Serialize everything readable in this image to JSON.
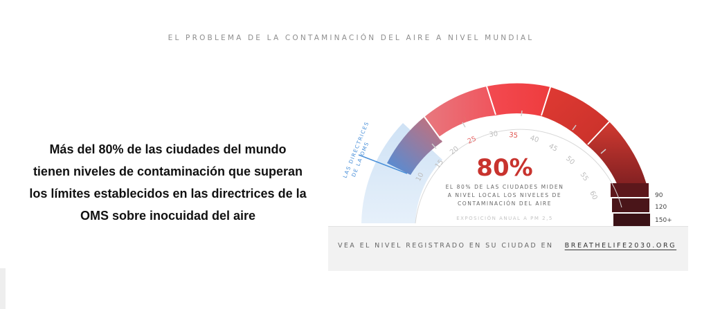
{
  "header": {
    "title": "EL PROBLEMA DE LA CONTAMINACIÓN DEL AIRE A NIVEL MUNDIAL"
  },
  "statement": {
    "lines": [
      "Más del 80% de las ciudades del mundo",
      "tienen niveles de contaminación que superan",
      "los límites establecidos en las directrices de la",
      "OMS sobre inocuidad del aire"
    ]
  },
  "gauge": {
    "guideline_label_line1": "LAS DIRECTRICES",
    "guideline_label_line2": "DE LA OMS",
    "ticks": [
      "10",
      "15",
      "20",
      "25",
      "30",
      "35",
      "40",
      "45",
      "50",
      "55",
      "60"
    ],
    "highlighted_ticks": [
      "25",
      "35"
    ],
    "outer_labels": [
      "90",
      "120",
      "150+"
    ],
    "percent": "80%",
    "description_lines": [
      "EL 80% DE LAS CIUDADES MIDEN",
      "A NIVEL LOCAL LOS NIVELES DE",
      "CONTAMINACIÓN DEL AIRE"
    ],
    "exposure_label": "EXPOSICIÓN ANUAL A PM 2,5",
    "colors": {
      "accent": "#c8332e",
      "guideline": "#4a90d9"
    }
  },
  "footer": {
    "text": "VEA EL NIVEL REGISTRADO EN SU CIUDAD EN",
    "link": "BREATHELIFE2030.ORG"
  }
}
